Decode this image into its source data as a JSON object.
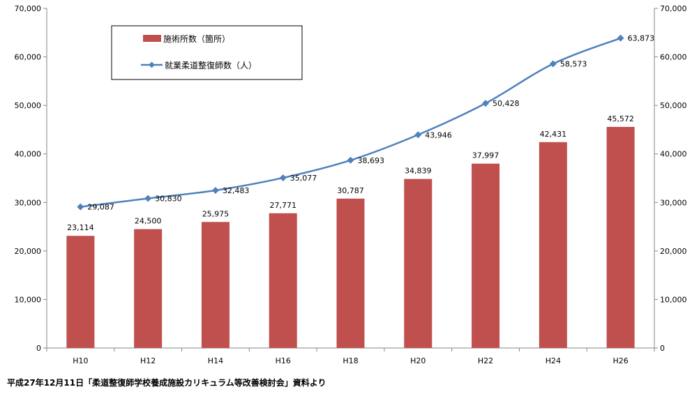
{
  "chart_data": {
    "type": "bar+line",
    "categories": [
      "H10",
      "H12",
      "H14",
      "H16",
      "H18",
      "H20",
      "H22",
      "H24",
      "H26"
    ],
    "series": [
      {
        "name": "施術所数（箇所）",
        "type": "bar",
        "axis": "left",
        "color": "#c0504d",
        "values": [
          23114,
          24500,
          25975,
          27771,
          30787,
          34839,
          37997,
          42431,
          45572
        ],
        "labels": [
          "23,114",
          "24,500",
          "25,975",
          "27,771",
          "30,787",
          "34,839",
          "37,997",
          "42,431",
          "45,572"
        ]
      },
      {
        "name": "就業柔道整復師数（人）",
        "type": "line",
        "axis": "right",
        "color": "#4f81bd",
        "marker": "diamond",
        "values": [
          29087,
          30830,
          32483,
          35077,
          38693,
          43946,
          50428,
          58573,
          63873
        ],
        "labels": [
          "29,087",
          "30,830",
          "32,483",
          "35,077",
          "38,693",
          "43,946",
          "50,428",
          "58,573",
          "63,873"
        ]
      }
    ],
    "y_left": {
      "range": [
        0,
        70000
      ],
      "ticks": [
        0,
        10000,
        20000,
        30000,
        40000,
        50000,
        60000,
        70000
      ],
      "tick_labels": [
        "0",
        "10,000",
        "20,000",
        "30,000",
        "40,000",
        "50,000",
        "60,000",
        "70,000"
      ]
    },
    "y_right": {
      "range": [
        0,
        70000
      ],
      "ticks": [
        0,
        10000,
        20000,
        30000,
        40000,
        50000,
        60000,
        70000
      ],
      "tick_labels": [
        "0",
        "10,000",
        "20,000",
        "30,000",
        "40,000",
        "50,000",
        "60,000",
        "70,000"
      ]
    },
    "grid": false,
    "legend_position": "top-left"
  },
  "source_note": "平成27年12月11日「柔道整復師学校養成施設カリキュラム等改善検討会」資料より"
}
